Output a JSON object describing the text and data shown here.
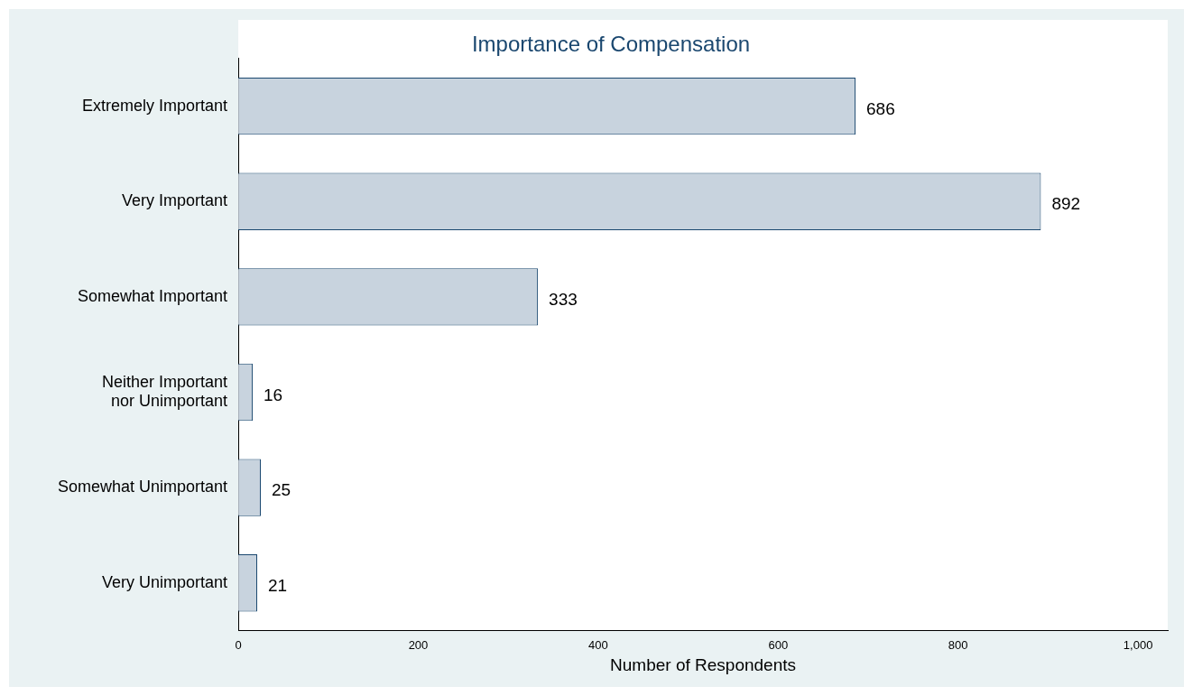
{
  "chart_data": {
    "type": "bar",
    "orientation": "horizontal",
    "title": "Importance of Compensation",
    "xlabel": "Number of Respondents",
    "categories": [
      "Extremely Important",
      "Very Important",
      "Somewhat Important",
      "Neither Important\nnor Unimportant",
      "Somewhat Unimportant",
      "Very Unimportant"
    ],
    "values": [
      686,
      892,
      333,
      16,
      25,
      21
    ],
    "color": "#c8d3de",
    "xlim": [
      0,
      1033
    ],
    "xticks": [
      0,
      200,
      400,
      600,
      800,
      {
        "value": 1000,
        "label": "1,000"
      }
    ],
    "grid": false,
    "legend": false,
    "data_labels": true
  }
}
